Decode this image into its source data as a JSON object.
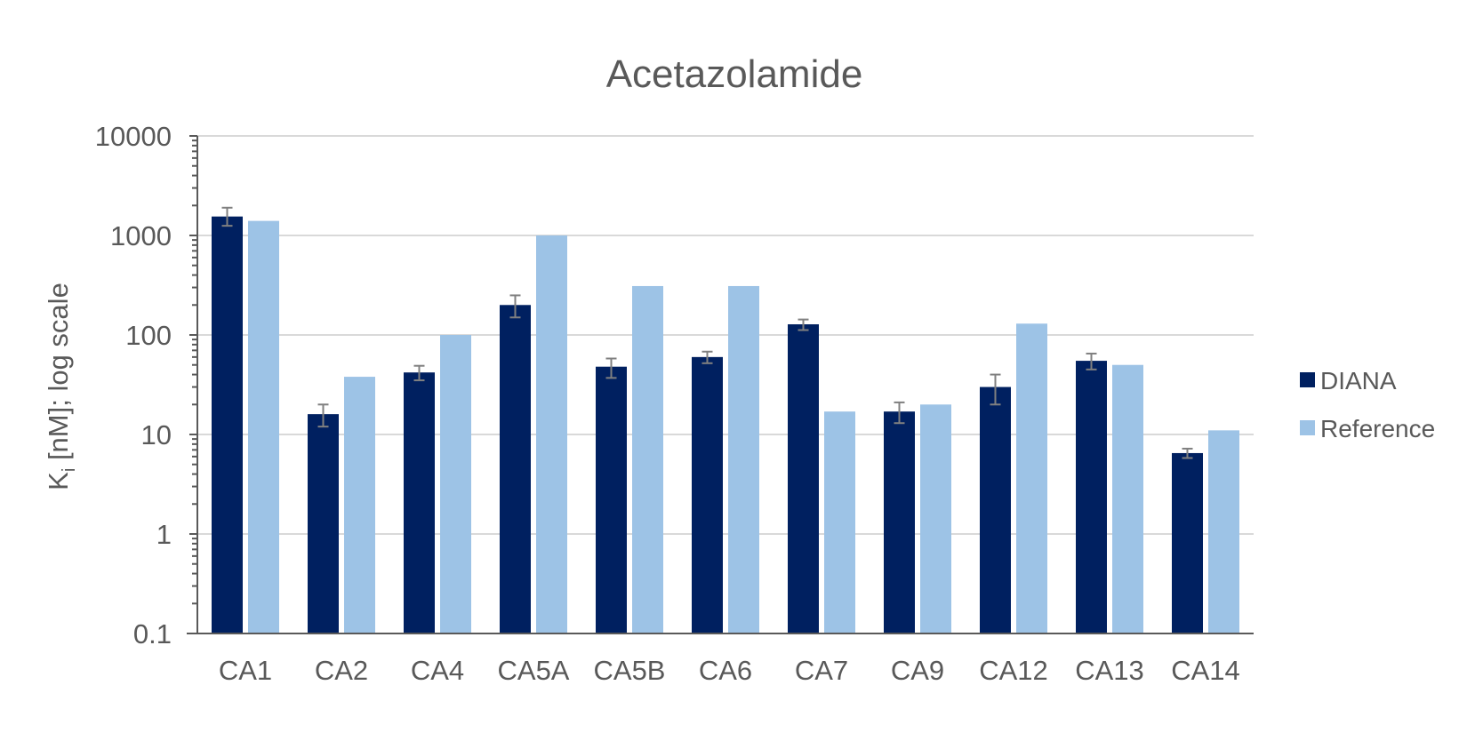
{
  "chart_data": {
    "type": "bar",
    "title": "Acetazolamide",
    "ylabel": "K",
    "ylabel_subscript": "i",
    "ylabel_suffix": " [nM]; log scale",
    "y_scale": "log",
    "ylim": [
      0.1,
      10000
    ],
    "y_ticks": [
      "10000",
      "1000",
      "100",
      "10",
      "1",
      "0.1"
    ],
    "grid": true,
    "legend_position": "right",
    "categories": [
      "CA1",
      "CA2",
      "CA4",
      "CA5A",
      "CA5B",
      "CA6",
      "CA7",
      "CA9",
      "CA12",
      "CA13",
      "CA14"
    ],
    "series": [
      {
        "name": "DIANA",
        "color": "#002060",
        "values": [
          1550,
          16,
          42,
          200,
          48,
          60,
          128,
          17,
          30,
          55,
          6.5
        ],
        "error_low": [
          1250,
          12,
          35,
          150,
          37,
          52,
          112,
          13,
          20,
          45,
          5.8
        ],
        "error_high": [
          1900,
          20,
          49,
          250,
          58,
          68,
          143,
          21,
          40,
          65,
          7.2
        ]
      },
      {
        "name": "Reference",
        "color": "#9dc3e6",
        "values": [
          1400,
          38,
          100,
          1000,
          310,
          310,
          17,
          20,
          130,
          50,
          11
        ]
      }
    ]
  }
}
